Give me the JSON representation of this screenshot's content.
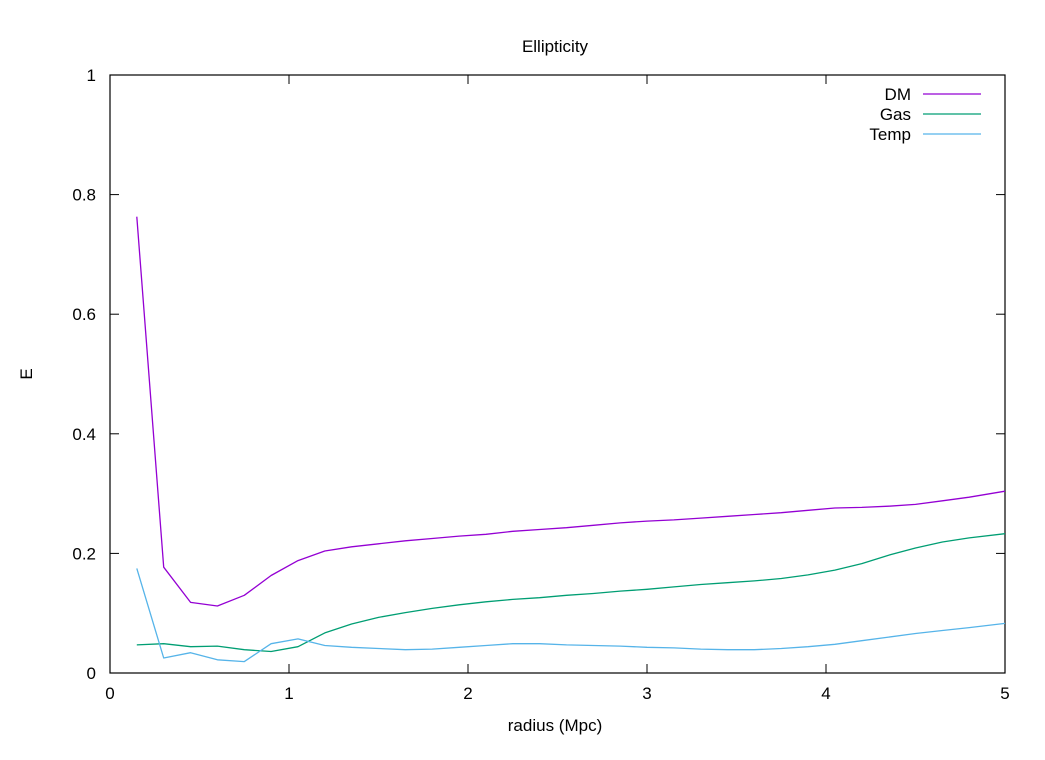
{
  "chart_data": {
    "type": "line",
    "title": "Ellipticity",
    "xlabel": "radius (Mpc)",
    "ylabel": "E",
    "xlim": [
      0,
      5
    ],
    "ylim": [
      0,
      1
    ],
    "xticks": [
      0,
      1,
      2,
      3,
      4,
      5
    ],
    "yticks": [
      0,
      0.2,
      0.4,
      0.6,
      0.8,
      1
    ],
    "xtick_labels": [
      "0",
      "1",
      "2",
      "3",
      "4",
      "5"
    ],
    "ytick_labels": [
      "0",
      "0.2",
      "0.4",
      "0.6",
      "0.8",
      "1"
    ],
    "grid": false,
    "legend_position": "top-right",
    "series": [
      {
        "name": "DM",
        "color": "#9400d3",
        "x": [
          0.15,
          0.3,
          0.45,
          0.6,
          0.75,
          0.9,
          1.05,
          1.2,
          1.35,
          1.5,
          1.65,
          1.8,
          1.95,
          2.1,
          2.25,
          2.4,
          2.55,
          2.7,
          2.85,
          3.0,
          3.15,
          3.3,
          3.45,
          3.6,
          3.75,
          3.9,
          4.05,
          4.2,
          4.35,
          4.5,
          4.65,
          4.8,
          5.0
        ],
        "y": [
          0.763,
          0.177,
          0.118,
          0.112,
          0.13,
          0.163,
          0.188,
          0.204,
          0.211,
          0.216,
          0.221,
          0.225,
          0.229,
          0.232,
          0.237,
          0.24,
          0.243,
          0.247,
          0.251,
          0.254,
          0.256,
          0.259,
          0.262,
          0.265,
          0.268,
          0.272,
          0.276,
          0.277,
          0.279,
          0.282,
          0.288,
          0.294,
          0.304
        ]
      },
      {
        "name": "Gas",
        "color": "#009e73",
        "x": [
          0.15,
          0.3,
          0.45,
          0.6,
          0.75,
          0.9,
          1.05,
          1.2,
          1.35,
          1.5,
          1.65,
          1.8,
          1.95,
          2.1,
          2.25,
          2.4,
          2.55,
          2.7,
          2.85,
          3.0,
          3.15,
          3.3,
          3.45,
          3.6,
          3.75,
          3.9,
          4.05,
          4.2,
          4.35,
          4.5,
          4.65,
          4.8,
          5.0
        ],
        "y": [
          0.047,
          0.049,
          0.044,
          0.045,
          0.039,
          0.036,
          0.044,
          0.067,
          0.082,
          0.093,
          0.101,
          0.108,
          0.114,
          0.119,
          0.123,
          0.126,
          0.13,
          0.133,
          0.137,
          0.14,
          0.144,
          0.148,
          0.151,
          0.154,
          0.158,
          0.164,
          0.172,
          0.183,
          0.197,
          0.209,
          0.219,
          0.226,
          0.233
        ]
      },
      {
        "name": "Temp",
        "color": "#56b4e9",
        "x": [
          0.15,
          0.3,
          0.45,
          0.6,
          0.75,
          0.9,
          1.05,
          1.2,
          1.35,
          1.5,
          1.65,
          1.8,
          1.95,
          2.1,
          2.25,
          2.4,
          2.55,
          2.7,
          2.85,
          3.0,
          3.15,
          3.3,
          3.45,
          3.6,
          3.75,
          3.9,
          4.05,
          4.2,
          4.35,
          4.5,
          4.65,
          4.8,
          5.0
        ],
        "y": [
          0.175,
          0.025,
          0.034,
          0.022,
          0.019,
          0.049,
          0.057,
          0.046,
          0.043,
          0.041,
          0.039,
          0.04,
          0.043,
          0.046,
          0.049,
          0.049,
          0.047,
          0.046,
          0.045,
          0.043,
          0.042,
          0.04,
          0.039,
          0.039,
          0.041,
          0.044,
          0.048,
          0.054,
          0.06,
          0.066,
          0.071,
          0.076,
          0.083
        ]
      }
    ]
  }
}
